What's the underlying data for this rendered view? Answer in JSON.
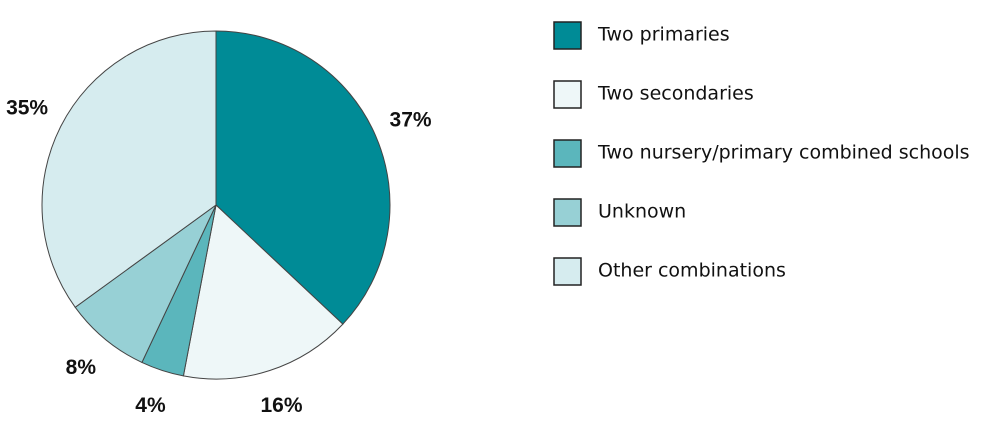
{
  "chart_data": {
    "type": "pie",
    "categories": [
      "Two primaries",
      "Two secondaries",
      "Two nursery/primary combined schools",
      "Unknown",
      "Other combinations"
    ],
    "values": [
      37,
      16,
      4,
      8,
      35
    ],
    "value_labels": [
      "37%",
      "16%",
      "4%",
      "8%",
      "35%"
    ],
    "colors": [
      "#008b96",
      "#eef7f8",
      "#5bb6bc",
      "#97d0d5",
      "#d6ecef"
    ],
    "legend": "right"
  }
}
